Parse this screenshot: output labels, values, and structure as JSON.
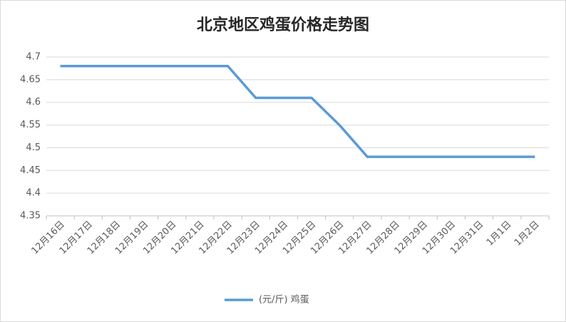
{
  "chart_data": {
    "type": "line",
    "title": "北京地区鸡蛋价格走势图",
    "categories": [
      "12月16日",
      "12月17日",
      "12月18日",
      "12月19日",
      "12月20日",
      "12月21日",
      "12月22日",
      "12月23日",
      "12月24日",
      "12月25日",
      "12月26日",
      "12月27日",
      "12月28日",
      "12月29日",
      "12月30日",
      "12月31日",
      "1月1日",
      "1月2日"
    ],
    "series": [
      {
        "name": "(元/斤) 鸡蛋",
        "color": "#5b9bd5",
        "values": [
          4.68,
          4.68,
          4.68,
          4.68,
          4.68,
          4.68,
          4.68,
          4.61,
          4.61,
          4.61,
          4.55,
          4.48,
          4.48,
          4.48,
          4.48,
          4.48,
          4.48,
          4.48
        ]
      }
    ],
    "ylim": [
      4.35,
      4.7
    ],
    "yticks": [
      4.35,
      4.4,
      4.45,
      4.5,
      4.55,
      4.6,
      4.65,
      4.7
    ],
    "grid": true,
    "legend": "bottom"
  }
}
